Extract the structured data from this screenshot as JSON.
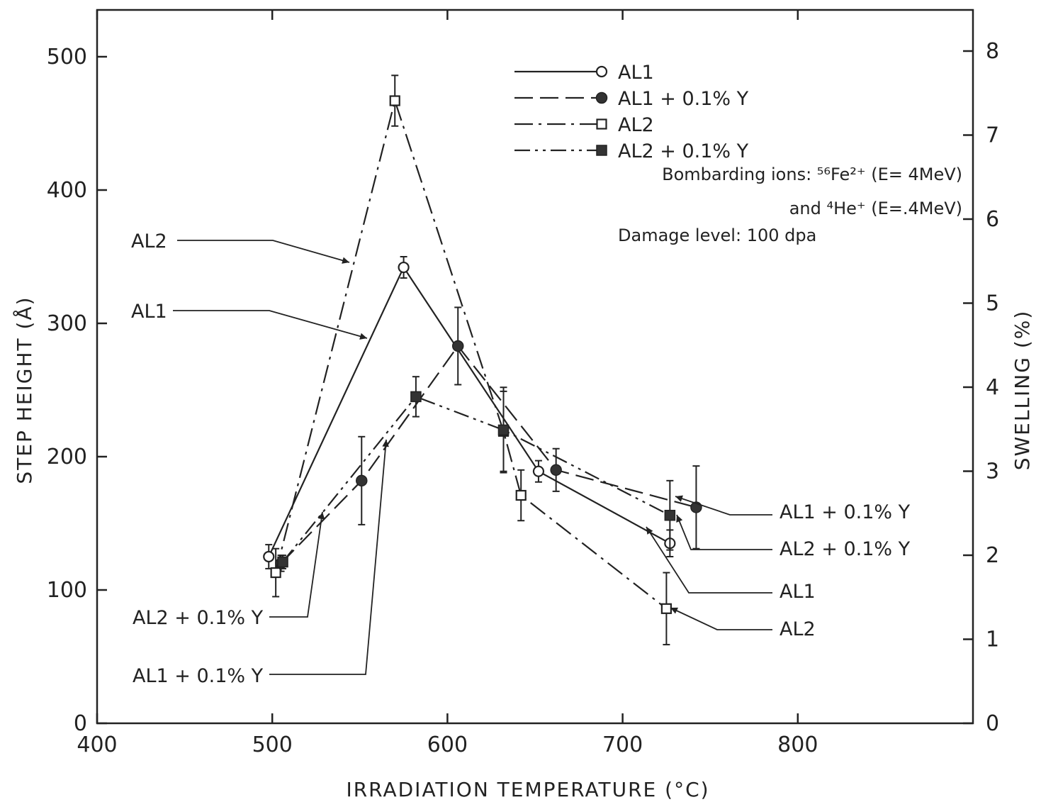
{
  "chart_data": {
    "type": "line",
    "xlabel": "IRRADIATION TEMPERATURE (°C)",
    "ylabel": "STEP HEIGHT (Å)",
    "y2label": "SWELLING (%)",
    "xlim": [
      400,
      900
    ],
    "ylim": [
      0,
      500
    ],
    "y2lim": [
      0,
      8.4
    ],
    "x_ticks": [
      "400",
      "500",
      "600",
      "700",
      "800"
    ],
    "y_ticks": [
      "0",
      "100",
      "200",
      "300",
      "400",
      "500"
    ],
    "y2_ticks": [
      "0",
      "1",
      "2",
      "3",
      "4",
      "5",
      "6",
      "7",
      "8"
    ],
    "grid": false,
    "legend_position": "top-right",
    "series": [
      {
        "name": "AL1",
        "marker": "open-circle",
        "line_style": "solid",
        "points": [
          {
            "x": 498,
            "y": 125,
            "err": 9
          },
          {
            "x": 575,
            "y": 342,
            "err": 8
          },
          {
            "x": 652,
            "y": 189,
            "err": 8
          },
          {
            "x": 727,
            "y": 135,
            "err": 10
          }
        ]
      },
      {
        "name": "AL1 + 0.1% Y",
        "marker": "filled-circle",
        "line_style": "dashed",
        "points": [
          {
            "x": 505,
            "y": 120,
            "err": 6
          },
          {
            "x": 551,
            "y": 182,
            "err": 33
          },
          {
            "x": 606,
            "y": 283,
            "err": 29
          },
          {
            "x": 662,
            "y": 190,
            "err": 16
          },
          {
            "x": 742,
            "y": 162,
            "err": 31
          }
        ]
      },
      {
        "name": "AL2",
        "marker": "open-square",
        "line_style": "dash-dot",
        "points": [
          {
            "x": 502,
            "y": 113,
            "err": 18
          },
          {
            "x": 570,
            "y": 467,
            "err": 19
          },
          {
            "x": 632,
            "y": 219,
            "err": 30
          },
          {
            "x": 642,
            "y": 171,
            "err": 19
          },
          {
            "x": 725,
            "y": 86,
            "err": 27
          }
        ]
      },
      {
        "name": "AL2 + 0.1% Y",
        "marker": "filled-square",
        "line_style": "dash-dot-dot",
        "points": [
          {
            "x": 506,
            "y": 121,
            "err": 5
          },
          {
            "x": 582,
            "y": 245,
            "err": 15
          },
          {
            "x": 632,
            "y": 220,
            "err": 32
          },
          {
            "x": 727,
            "y": 156,
            "err": 26
          }
        ]
      }
    ],
    "legend": [
      {
        "label": "AL1",
        "marker": "open-circle"
      },
      {
        "label": "AL1 + 0.1% Y",
        "marker": "filled-circle"
      },
      {
        "label": "AL2",
        "marker": "open-square"
      },
      {
        "label": "AL2 + 0.1% Y",
        "marker": "filled-square"
      }
    ],
    "annotations": {
      "bombarding": "Bombarding ions: ⁵⁶Fe²⁺ (E= 4MeV)",
      "and_he": "and ⁴He⁺ (E=.4MeV)",
      "damage": "Damage level: 100 dpa"
    },
    "callouts": [
      {
        "label": "AL2",
        "side": "left"
      },
      {
        "label": "AL1",
        "side": "left"
      },
      {
        "label": "AL2 + 0.1% Y",
        "side": "left"
      },
      {
        "label": "AL1 + 0.1% Y",
        "side": "left"
      },
      {
        "label": "AL1 + 0.1% Y",
        "side": "right"
      },
      {
        "label": "AL2 + 0.1% Y",
        "side": "right"
      },
      {
        "label": "AL1",
        "side": "right"
      },
      {
        "label": "AL2",
        "side": "right"
      }
    ]
  }
}
